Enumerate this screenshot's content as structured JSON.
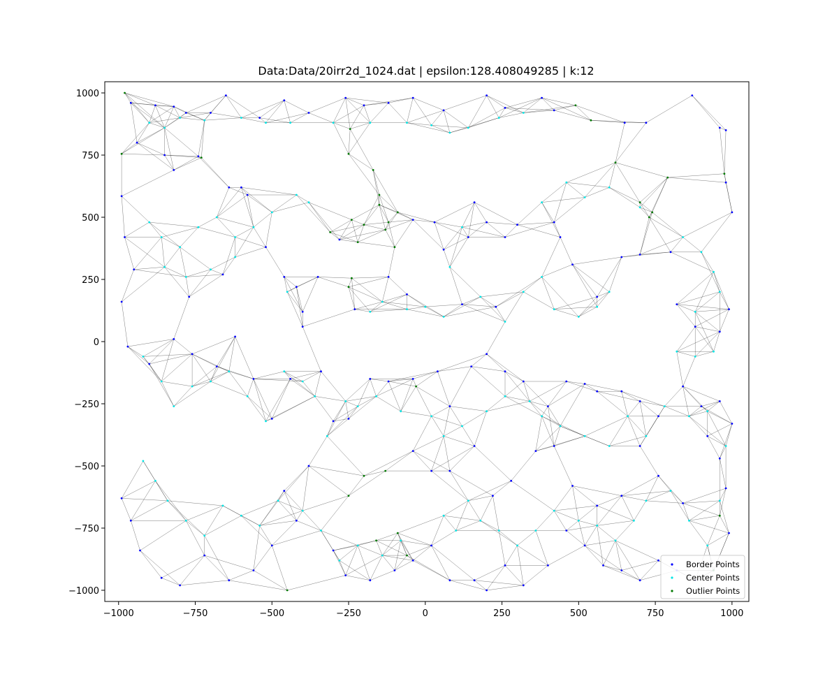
{
  "chart_data": {
    "type": "scatter",
    "title": "Data:Data/20irr2d_1024.dat | epsilon:128.408049285 | k:12",
    "xlabel": "",
    "ylabel": "",
    "xlim": [
      -1045,
      1055
    ],
    "ylim": [
      -1045,
      1045
    ],
    "xticks": [
      -1000,
      -750,
      -500,
      -250,
      0,
      250,
      500,
      750,
      1000
    ],
    "xtick_labels": [
      "−1000",
      "−750",
      "−500",
      "−250",
      "0",
      "250",
      "500",
      "750",
      "1000"
    ],
    "yticks": [
      1000,
      750,
      500,
      250,
      0,
      -250,
      -500,
      -750,
      -1000
    ],
    "ytick_labels": [
      "1000",
      "750",
      "500",
      "250",
      "0",
      "−250",
      "−500",
      "−750",
      "−1000"
    ],
    "grid": false,
    "legend_position": "lower-right",
    "edge_color": "#000000",
    "series": [
      {
        "name": "Border Points",
        "color": "#0000ff",
        "points": [
          [
            -990,
            585
          ],
          [
            -960,
            960
          ],
          [
            -880,
            950
          ],
          [
            -820,
            945
          ],
          [
            -780,
            920
          ],
          [
            -700,
            920
          ],
          [
            -650,
            990
          ],
          [
            -540,
            900
          ],
          [
            -460,
            970
          ],
          [
            -380,
            920
          ],
          [
            -260,
            980
          ],
          [
            -200,
            950
          ],
          [
            -120,
            960
          ],
          [
            -40,
            980
          ],
          [
            60,
            930
          ],
          [
            200,
            990
          ],
          [
            260,
            940
          ],
          [
            380,
            980
          ],
          [
            420,
            930
          ],
          [
            650,
            880
          ],
          [
            720,
            880
          ],
          [
            870,
            990
          ],
          [
            960,
            860
          ],
          [
            980,
            850
          ],
          [
            -940,
            800
          ],
          [
            -850,
            750
          ],
          [
            -820,
            690
          ],
          [
            -740,
            745
          ],
          [
            -640,
            620
          ],
          [
            -580,
            590
          ],
          [
            -520,
            380
          ],
          [
            -980,
            420
          ],
          [
            -950,
            290
          ],
          [
            -770,
            180
          ],
          [
            -660,
            270
          ],
          [
            -600,
            620
          ],
          [
            -460,
            260
          ],
          [
            -420,
            220
          ],
          [
            -400,
            120
          ],
          [
            -350,
            260
          ],
          [
            -280,
            410
          ],
          [
            -230,
            130
          ],
          [
            -120,
            260
          ],
          [
            -60,
            190
          ],
          [
            -40,
            490
          ],
          [
            30,
            480
          ],
          [
            60,
            370
          ],
          [
            120,
            150
          ],
          [
            140,
            420
          ],
          [
            160,
            560
          ],
          [
            200,
            480
          ],
          [
            230,
            140
          ],
          [
            260,
            420
          ],
          [
            300,
            470
          ],
          [
            420,
            480
          ],
          [
            440,
            420
          ],
          [
            480,
            310
          ],
          [
            560,
            180
          ],
          [
            640,
            340
          ],
          [
            700,
            350
          ],
          [
            800,
            360
          ],
          [
            820,
            150
          ],
          [
            880,
            60
          ],
          [
            960,
            40
          ],
          [
            990,
            130
          ],
          [
            1000,
            520
          ],
          [
            980,
            640
          ],
          [
            -990,
            160
          ],
          [
            -970,
            -20
          ],
          [
            -900,
            -90
          ],
          [
            -820,
            10
          ],
          [
            -760,
            -50
          ],
          [
            -680,
            -100
          ],
          [
            -620,
            20
          ],
          [
            -560,
            -150
          ],
          [
            -500,
            -310
          ],
          [
            -440,
            -150
          ],
          [
            -400,
            60
          ],
          [
            -340,
            -120
          ],
          [
            -300,
            -320
          ],
          [
            -250,
            -310
          ],
          [
            -180,
            -150
          ],
          [
            -120,
            -160
          ],
          [
            -40,
            -150
          ],
          [
            40,
            -120
          ],
          [
            80,
            -260
          ],
          [
            150,
            -100
          ],
          [
            200,
            -50
          ],
          [
            260,
            -120
          ],
          [
            320,
            -160
          ],
          [
            400,
            -260
          ],
          [
            460,
            -160
          ],
          [
            520,
            -170
          ],
          [
            560,
            -200
          ],
          [
            640,
            -200
          ],
          [
            700,
            -240
          ],
          [
            760,
            -300
          ],
          [
            840,
            -180
          ],
          [
            900,
            -260
          ],
          [
            960,
            -240
          ],
          [
            1000,
            -330
          ],
          [
            -990,
            -630
          ],
          [
            -960,
            -720
          ],
          [
            -930,
            -840
          ],
          [
            -860,
            -950
          ],
          [
            -800,
            -980
          ],
          [
            -720,
            -860
          ],
          [
            -640,
            -960
          ],
          [
            -560,
            -920
          ],
          [
            -500,
            -820
          ],
          [
            -460,
            -600
          ],
          [
            -420,
            -720
          ],
          [
            -380,
            -500
          ],
          [
            -300,
            -840
          ],
          [
            -260,
            -940
          ],
          [
            -180,
            -960
          ],
          [
            -100,
            -920
          ],
          [
            -40,
            -880
          ],
          [
            20,
            -820
          ],
          [
            80,
            -960
          ],
          [
            160,
            -960
          ],
          [
            200,
            -1000
          ],
          [
            260,
            -900
          ],
          [
            320,
            -980
          ],
          [
            400,
            -900
          ],
          [
            460,
            -760
          ],
          [
            520,
            -820
          ],
          [
            580,
            -900
          ],
          [
            640,
            -920
          ],
          [
            700,
            -960
          ],
          [
            760,
            -880
          ],
          [
            820,
            -920
          ],
          [
            880,
            -960
          ],
          [
            940,
            -920
          ],
          [
            990,
            -770
          ],
          [
            980,
            -590
          ],
          [
            960,
            -470
          ],
          [
            920,
            -380
          ],
          [
            840,
            -650
          ],
          [
            760,
            -540
          ],
          [
            700,
            -420
          ],
          [
            640,
            -620
          ],
          [
            560,
            -660
          ],
          [
            480,
            -580
          ],
          [
            420,
            -420
          ],
          [
            360,
            -440
          ],
          [
            280,
            -560
          ],
          [
            220,
            -620
          ],
          [
            160,
            -420
          ],
          [
            80,
            -520
          ],
          [
            20,
            -520
          ],
          [
            -40,
            -440
          ]
        ]
      },
      {
        "name": "Center Points",
        "color": "#00e5e5",
        "points": [
          [
            -900,
            880
          ],
          [
            -850,
            860
          ],
          [
            -800,
            900
          ],
          [
            -720,
            890
          ],
          [
            -600,
            900
          ],
          [
            -520,
            880
          ],
          [
            -440,
            880
          ],
          [
            -300,
            880
          ],
          [
            -180,
            880
          ],
          [
            -60,
            880
          ],
          [
            20,
            870
          ],
          [
            80,
            840
          ],
          [
            140,
            860
          ],
          [
            240,
            900
          ],
          [
            320,
            920
          ],
          [
            -900,
            480
          ],
          [
            -860,
            420
          ],
          [
            -800,
            380
          ],
          [
            -740,
            460
          ],
          [
            -680,
            500
          ],
          [
            -620,
            420
          ],
          [
            -560,
            460
          ],
          [
            -500,
            520
          ],
          [
            -420,
            590
          ],
          [
            -380,
            560
          ],
          [
            -850,
            300
          ],
          [
            -780,
            260
          ],
          [
            -700,
            290
          ],
          [
            -620,
            340
          ],
          [
            -450,
            200
          ],
          [
            -180,
            120
          ],
          [
            -140,
            160
          ],
          [
            -60,
            130
          ],
          [
            0,
            140
          ],
          [
            60,
            100
          ],
          [
            120,
            460
          ],
          [
            80,
            300
          ],
          [
            180,
            180
          ],
          [
            260,
            80
          ],
          [
            320,
            200
          ],
          [
            380,
            260
          ],
          [
            420,
            130
          ],
          [
            500,
            100
          ],
          [
            560,
            140
          ],
          [
            600,
            200
          ],
          [
            380,
            560
          ],
          [
            460,
            640
          ],
          [
            520,
            580
          ],
          [
            600,
            620
          ],
          [
            700,
            540
          ],
          [
            840,
            420
          ],
          [
            900,
            360
          ],
          [
            940,
            280
          ],
          [
            960,
            200
          ],
          [
            880,
            120
          ],
          [
            820,
            -40
          ],
          [
            880,
            -60
          ],
          [
            940,
            -40
          ],
          [
            -920,
            -60
          ],
          [
            -860,
            -160
          ],
          [
            -820,
            -260
          ],
          [
            -760,
            -180
          ],
          [
            -700,
            -160
          ],
          [
            -640,
            -120
          ],
          [
            -580,
            -220
          ],
          [
            -520,
            -320
          ],
          [
            -460,
            -120
          ],
          [
            -400,
            -160
          ],
          [
            -360,
            -220
          ],
          [
            -320,
            -380
          ],
          [
            -260,
            -240
          ],
          [
            -220,
            -260
          ],
          [
            -160,
            -220
          ],
          [
            -80,
            -280
          ],
          [
            20,
            -300
          ],
          [
            60,
            -380
          ],
          [
            120,
            -340
          ],
          [
            200,
            -280
          ],
          [
            260,
            -220
          ],
          [
            340,
            -240
          ],
          [
            380,
            -300
          ],
          [
            440,
            -340
          ],
          [
            520,
            -380
          ],
          [
            600,
            -420
          ],
          [
            660,
            -300
          ],
          [
            720,
            -380
          ],
          [
            780,
            -260
          ],
          [
            860,
            -300
          ],
          [
            920,
            -280
          ],
          [
            980,
            -420
          ],
          [
            -920,
            -480
          ],
          [
            -880,
            -560
          ],
          [
            -840,
            -640
          ],
          [
            -780,
            -720
          ],
          [
            -720,
            -780
          ],
          [
            -660,
            -660
          ],
          [
            -600,
            -700
          ],
          [
            -540,
            -740
          ],
          [
            -480,
            -640
          ],
          [
            -400,
            -680
          ],
          [
            -340,
            -760
          ],
          [
            -280,
            -880
          ],
          [
            -220,
            -820
          ],
          [
            -140,
            -860
          ],
          [
            -80,
            -800
          ],
          [
            60,
            -700
          ],
          [
            100,
            -760
          ],
          [
            140,
            -640
          ],
          [
            180,
            -720
          ],
          [
            240,
            -760
          ],
          [
            300,
            -820
          ],
          [
            360,
            -760
          ],
          [
            420,
            -680
          ],
          [
            500,
            -720
          ],
          [
            560,
            -740
          ],
          [
            620,
            -800
          ],
          [
            680,
            -720
          ],
          [
            720,
            -640
          ],
          [
            800,
            -600
          ],
          [
            860,
            -720
          ],
          [
            920,
            -820
          ],
          [
            960,
            -640
          ]
        ]
      },
      {
        "name": "Outlier Points",
        "color": "#007800",
        "points": [
          [
            -980,
            1000
          ],
          [
            -990,
            755
          ],
          [
            -730,
            740
          ],
          [
            -250,
            755
          ],
          [
            -245,
            855
          ],
          [
            -170,
            690
          ],
          [
            -310,
            440
          ],
          [
            -240,
            490
          ],
          [
            -220,
            400
          ],
          [
            -200,
            470
          ],
          [
            -150,
            550
          ],
          [
            -130,
            450
          ],
          [
            -100,
            380
          ],
          [
            -240,
            255
          ],
          [
            -250,
            220
          ],
          [
            -150,
            590
          ],
          [
            -120,
            480
          ],
          [
            -90,
            520
          ],
          [
            490,
            950
          ],
          [
            540,
            890
          ],
          [
            620,
            720
          ],
          [
            700,
            560
          ],
          [
            730,
            500
          ],
          [
            740,
            520
          ],
          [
            790,
            660
          ],
          [
            975,
            675
          ],
          [
            -450,
            -1000
          ],
          [
            -200,
            -540
          ],
          [
            -130,
            -520
          ],
          [
            -90,
            -770
          ],
          [
            -250,
            -620
          ],
          [
            -60,
            -860
          ],
          [
            -160,
            -800
          ],
          [
            -30,
            -180
          ],
          [
            960,
            -700
          ],
          [
            940,
            -920
          ]
        ]
      }
    ]
  }
}
